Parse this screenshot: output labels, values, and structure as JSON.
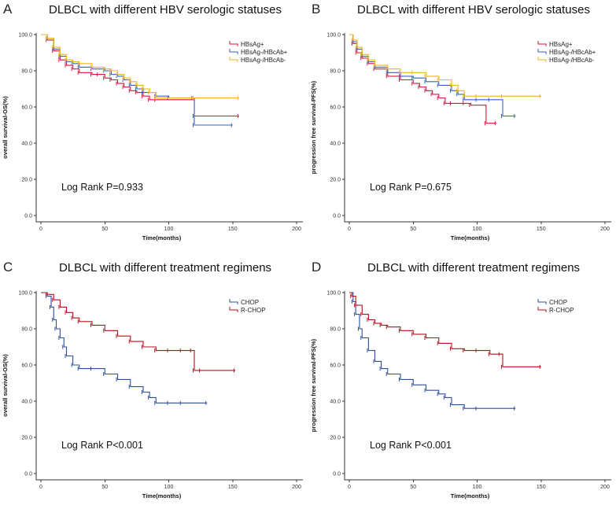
{
  "chart_data": [
    {
      "panel": "A",
      "title": "DLBCL with different HBV serologic statuses",
      "type": "line",
      "xlabel": "Time(months)",
      "ylabel": "overall survival-OS(%)",
      "xlim": [
        0,
        200
      ],
      "ylim": [
        0,
        100
      ],
      "xticks": [
        "0",
        "50",
        "100",
        "150",
        "200"
      ],
      "yticks": [
        "0.0",
        "20.0",
        "40.0",
        "60.0",
        "80.0",
        "100.0"
      ],
      "annotation": "Log Rank P=0.933",
      "legend_position": "top-right",
      "series": [
        {
          "name": "HBsAg+",
          "color": "#d4163c",
          "x": [
            0,
            5,
            10,
            15,
            20,
            25,
            30,
            40,
            45,
            50,
            55,
            60,
            65,
            70,
            75,
            80,
            85,
            90,
            120,
            155
          ],
          "y": [
            100,
            97,
            91,
            86,
            83,
            81,
            79,
            78,
            78,
            76,
            75,
            73,
            71,
            69,
            68,
            66,
            64,
            64,
            55,
            55
          ]
        },
        {
          "name": "HBsAg-/HBcAb+",
          "color": "#3a62b8",
          "x": [
            0,
            5,
            10,
            15,
            20,
            25,
            30,
            40,
            50,
            55,
            60,
            65,
            70,
            75,
            80,
            90,
            100,
            119,
            120,
            150
          ],
          "y": [
            100,
            98,
            92,
            88,
            85,
            84,
            82,
            81,
            80,
            78,
            77,
            75,
            72,
            70,
            68,
            66,
            65,
            65,
            50,
            50
          ]
        },
        {
          "name": "HBsAg-/HBcAb-",
          "color": "#f2b21a",
          "x": [
            0,
            5,
            10,
            15,
            20,
            25,
            30,
            40,
            50,
            55,
            60,
            65,
            70,
            75,
            80,
            85,
            90,
            120,
            155
          ],
          "y": [
            100,
            98,
            93,
            89,
            86,
            85,
            84,
            82,
            81,
            80,
            78,
            76,
            74,
            72,
            70,
            68,
            65,
            65,
            65
          ]
        }
      ]
    },
    {
      "panel": "B",
      "title": "DLBCL with different HBV serologic statuses",
      "type": "line",
      "xlabel": "Time(months)",
      "ylabel": "progression free survival-PFS(%)",
      "xlim": [
        0,
        200
      ],
      "ylim": [
        0,
        100
      ],
      "xticks": [
        "0",
        "50",
        "100",
        "150",
        "200"
      ],
      "yticks": [
        "0.0",
        "20.0",
        "40.0",
        "60.0",
        "80.0",
        "100.0"
      ],
      "annotation": "Log Rank P=0.675",
      "legend_position": "top-right",
      "series": [
        {
          "name": "HBsAg+",
          "color": "#d4163c",
          "x": [
            0,
            3,
            6,
            10,
            15,
            20,
            30,
            40,
            50,
            55,
            60,
            65,
            70,
            75,
            80,
            90,
            95,
            107,
            115
          ],
          "y": [
            100,
            95,
            90,
            87,
            84,
            81,
            77,
            75,
            73,
            71,
            69,
            67,
            65,
            62,
            62,
            62,
            61,
            51,
            51
          ]
        },
        {
          "name": "HBsAg-/HBcAb+",
          "color": "#3a62b8",
          "x": [
            0,
            3,
            6,
            10,
            15,
            20,
            30,
            40,
            50,
            60,
            70,
            80,
            85,
            90,
            100,
            110,
            120,
            130
          ],
          "y": [
            100,
            96,
            92,
            88,
            85,
            82,
            79,
            77,
            76,
            74,
            72,
            69,
            67,
            64,
            64,
            64,
            55,
            55
          ]
        },
        {
          "name": "HBsAg-/HBcAb-",
          "color": "#f2b21a",
          "x": [
            0,
            3,
            6,
            10,
            15,
            20,
            30,
            40,
            50,
            60,
            70,
            80,
            85,
            90,
            100,
            120,
            150
          ],
          "y": [
            100,
            97,
            93,
            89,
            86,
            83,
            81,
            79,
            79,
            77,
            75,
            72,
            69,
            66,
            66,
            66,
            66
          ]
        }
      ]
    },
    {
      "panel": "C",
      "title": "DLBCL with different treatment regimens",
      "type": "line",
      "xlabel": "Time(months)",
      "ylabel": "overall survival-OS(%)",
      "xlim": [
        0,
        200
      ],
      "ylim": [
        0,
        100
      ],
      "xticks": [
        "0",
        "50",
        "100",
        "150",
        "200"
      ],
      "yticks": [
        "0.0",
        "20.0",
        "40.0",
        "60.0",
        "80.0",
        "100.0"
      ],
      "annotation": "Log Rank P<0.001",
      "legend_position": "top-right",
      "series": [
        {
          "name": "CHOP",
          "color": "#2c4f9e",
          "x": [
            0,
            5,
            8,
            10,
            12,
            15,
            18,
            20,
            25,
            30,
            40,
            50,
            60,
            70,
            80,
            85,
            90,
            100,
            110,
            130
          ],
          "y": [
            100,
            98,
            92,
            85,
            80,
            75,
            70,
            65,
            60,
            58,
            58,
            55,
            52,
            48,
            45,
            42,
            39,
            39,
            39,
            39
          ]
        },
        {
          "name": "R-CHOP",
          "color": "#b3101a",
          "x": [
            0,
            5,
            10,
            15,
            20,
            25,
            30,
            40,
            50,
            60,
            70,
            80,
            90,
            100,
            110,
            118,
            120,
            125,
            152
          ],
          "y": [
            100,
            99,
            96,
            92,
            89,
            86,
            84,
            82,
            79,
            76,
            73,
            70,
            68,
            68,
            68,
            68,
            57,
            57,
            57
          ]
        }
      ]
    },
    {
      "panel": "D",
      "title": "DLBCL with different treatment regimens",
      "type": "line",
      "xlabel": "Time(months)",
      "ylabel": "progression free survival-PFS(%)",
      "xlim": [
        0,
        200
      ],
      "ylim": [
        0,
        100
      ],
      "xticks": [
        "0",
        "50",
        "100",
        "150",
        "200"
      ],
      "yticks": [
        "0.0",
        "20.0",
        "40.0",
        "60.0",
        "80.0",
        "100.0"
      ],
      "annotation": "Log Rank P<0.001",
      "legend_position": "top-right",
      "series": [
        {
          "name": "CHOP",
          "color": "#2c4f9e",
          "x": [
            0,
            3,
            5,
            8,
            10,
            15,
            20,
            25,
            30,
            40,
            50,
            60,
            70,
            75,
            80,
            90,
            100,
            130
          ],
          "y": [
            100,
            95,
            88,
            80,
            75,
            68,
            62,
            58,
            55,
            52,
            49,
            46,
            44,
            42,
            38,
            36,
            36,
            36
          ]
        },
        {
          "name": "R-CHOP",
          "color": "#b3101a",
          "x": [
            0,
            2,
            5,
            10,
            15,
            20,
            25,
            30,
            40,
            50,
            60,
            70,
            80,
            90,
            100,
            110,
            118,
            120,
            150
          ],
          "y": [
            100,
            98,
            93,
            88,
            85,
            83,
            82,
            81,
            79,
            77,
            75,
            72,
            69,
            68,
            68,
            66,
            66,
            59,
            59
          ]
        }
      ]
    }
  ]
}
